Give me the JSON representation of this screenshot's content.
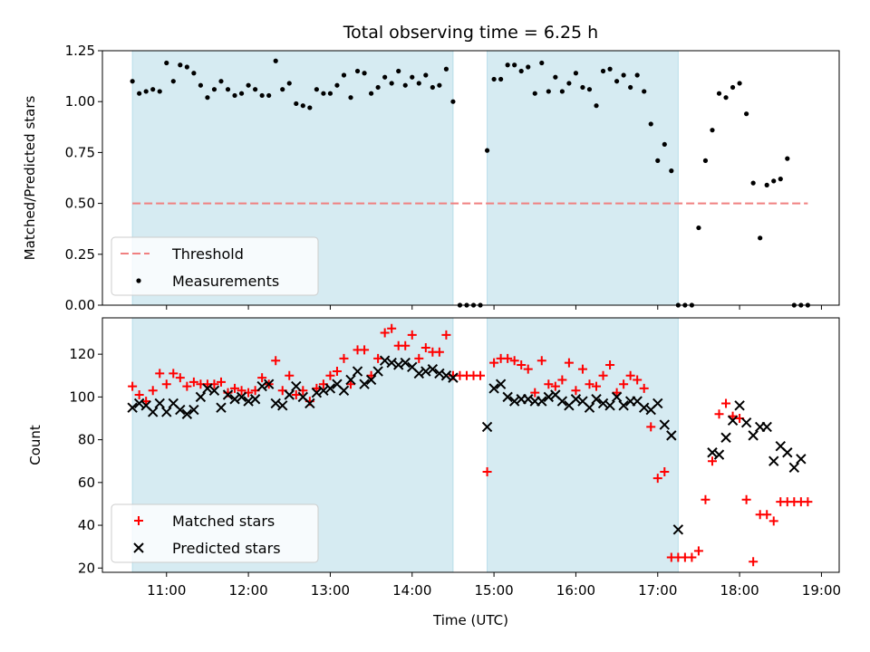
{
  "chart_data": [
    {
      "type": "scatter",
      "title": "Total observing time = 6.25 h",
      "xlabel": "",
      "ylabel": "Matched/Predicted stars",
      "xlim": [
        "10:13",
        "19:13"
      ],
      "ylim": [
        0,
        1.25
      ],
      "y_ticks": [
        "0.00",
        "0.25",
        "0.50",
        "0.75",
        "1.00",
        "1.25"
      ],
      "shaded_spans": [
        [
          "10:35",
          "14:30"
        ],
        [
          "14:55",
          "17:15"
        ]
      ],
      "threshold": {
        "name": "Threshold",
        "value": 0.5,
        "x_range": [
          "10:35",
          "18:50"
        ],
        "color": "#f08080"
      },
      "legend": [
        "Threshold",
        "Measurements"
      ],
      "legend_position": "lower-left",
      "series": [
        {
          "name": "Measurements",
          "color": "#000000",
          "x": [
            "10:35",
            "10:40",
            "10:45",
            "10:50",
            "10:55",
            "11:00",
            "11:05",
            "11:10",
            "11:15",
            "11:20",
            "11:25",
            "11:30",
            "11:35",
            "11:40",
            "11:45",
            "11:50",
            "11:55",
            "12:00",
            "12:05",
            "12:10",
            "12:15",
            "12:20",
            "12:25",
            "12:30",
            "12:35",
            "12:40",
            "12:45",
            "12:50",
            "12:55",
            "13:00",
            "13:05",
            "13:10",
            "13:15",
            "13:20",
            "13:25",
            "13:30",
            "13:35",
            "13:40",
            "13:45",
            "13:50",
            "13:55",
            "14:00",
            "14:05",
            "14:10",
            "14:15",
            "14:20",
            "14:25",
            "14:30",
            "14:35",
            "14:40",
            "14:45",
            "14:50",
            "14:55",
            "15:00",
            "15:05",
            "15:10",
            "15:15",
            "15:20",
            "15:25",
            "15:30",
            "15:35",
            "15:40",
            "15:45",
            "15:50",
            "15:55",
            "16:00",
            "16:05",
            "16:10",
            "16:15",
            "16:20",
            "16:25",
            "16:30",
            "16:35",
            "16:40",
            "16:45",
            "16:50",
            "16:55",
            "17:00",
            "17:05",
            "17:10",
            "17:15",
            "17:20",
            "17:25",
            "17:30",
            "17:35",
            "17:40",
            "17:45",
            "17:50",
            "17:55",
            "18:00",
            "18:05",
            "18:10",
            "18:15",
            "18:20",
            "18:25",
            "18:30",
            "18:35",
            "18:40",
            "18:45",
            "18:50"
          ],
          "y": [
            1.1,
            1.04,
            1.05,
            1.06,
            1.05,
            1.19,
            1.1,
            1.18,
            1.17,
            1.14,
            1.08,
            1.02,
            1.06,
            1.1,
            1.06,
            1.03,
            1.04,
            1.08,
            1.06,
            1.03,
            1.03,
            1.2,
            1.06,
            1.09,
            0.99,
            0.98,
            0.97,
            1.06,
            1.04,
            1.04,
            1.08,
            1.13,
            1.02,
            1.15,
            1.14,
            1.04,
            1.07,
            1.12,
            1.09,
            1.15,
            1.08,
            1.12,
            1.09,
            1.13,
            1.07,
            1.08,
            1.16,
            1.0,
            0.0,
            0.0,
            0.0,
            0.0,
            0.76,
            1.11,
            1.11,
            1.18,
            1.18,
            1.15,
            1.17,
            1.04,
            1.19,
            1.05,
            1.12,
            1.05,
            1.09,
            1.14,
            1.07,
            1.06,
            0.98,
            1.15,
            1.16,
            1.1,
            1.13,
            1.07,
            1.13,
            1.05,
            0.89,
            0.71,
            0.79,
            0.66,
            0.0,
            0.0,
            0.0,
            0.38,
            0.71,
            0.86,
            1.04,
            1.02,
            1.07,
            1.09,
            0.94,
            0.6,
            0.33,
            0.59,
            0.61,
            0.62,
            0.72,
            0.0,
            0.0,
            0.0
          ]
        }
      ]
    },
    {
      "type": "scatter",
      "title": "",
      "xlabel": "Time (UTC)",
      "ylabel": "Count",
      "xlim": [
        "10:13",
        "19:13"
      ],
      "ylim": [
        18,
        137
      ],
      "x_ticks": [
        "11:00",
        "12:00",
        "13:00",
        "14:00",
        "15:00",
        "16:00",
        "17:00",
        "18:00",
        "19:00"
      ],
      "y_ticks": [
        "20",
        "40",
        "60",
        "80",
        "100",
        "120"
      ],
      "shaded_spans": [
        [
          "10:35",
          "14:30"
        ],
        [
          "14:55",
          "17:15"
        ]
      ],
      "legend": [
        "Matched stars",
        "Predicted stars"
      ],
      "legend_position": "lower-left",
      "series": [
        {
          "name": "Matched stars",
          "marker": "plus",
          "color": "#ff0000",
          "x": [
            "10:35",
            "10:40",
            "10:45",
            "10:50",
            "10:55",
            "11:00",
            "11:05",
            "11:10",
            "11:15",
            "11:20",
            "11:25",
            "11:30",
            "11:35",
            "11:40",
            "11:45",
            "11:50",
            "11:55",
            "12:00",
            "12:05",
            "12:10",
            "12:15",
            "12:20",
            "12:25",
            "12:30",
            "12:35",
            "12:40",
            "12:45",
            "12:50",
            "12:55",
            "13:00",
            "13:05",
            "13:10",
            "13:15",
            "13:20",
            "13:25",
            "13:30",
            "13:35",
            "13:40",
            "13:45",
            "13:50",
            "13:55",
            "14:00",
            "14:05",
            "14:10",
            "14:15",
            "14:20",
            "14:25",
            "14:30",
            "14:35",
            "14:40",
            "14:45",
            "14:50",
            "14:55",
            "15:00",
            "15:05",
            "15:10",
            "15:15",
            "15:20",
            "15:25",
            "15:30",
            "15:35",
            "15:40",
            "15:45",
            "15:50",
            "15:55",
            "16:00",
            "16:05",
            "16:10",
            "16:15",
            "16:20",
            "16:25",
            "16:30",
            "16:35",
            "16:40",
            "16:45",
            "16:50",
            "16:55",
            "17:00",
            "17:05",
            "17:10",
            "17:15",
            "17:20",
            "17:25",
            "17:30",
            "17:35",
            "17:40",
            "17:45",
            "17:50",
            "17:55",
            "18:00",
            "18:05",
            "18:10",
            "18:15",
            "18:20",
            "18:25",
            "18:30",
            "18:35",
            "18:40",
            "18:45",
            "18:50"
          ],
          "y": [
            105,
            101,
            98,
            103,
            111,
            106,
            111,
            109,
            105,
            107,
            106,
            106,
            106,
            107,
            102,
            104,
            103,
            102,
            103,
            109,
            106,
            117,
            103,
            110,
            101,
            103,
            98,
            104,
            106,
            110,
            112,
            118,
            106,
            122,
            122,
            110,
            118,
            130,
            132,
            124,
            124,
            129,
            118,
            123,
            121,
            121,
            129,
            110,
            110,
            110,
            110,
            110,
            65,
            116,
            118,
            118,
            117,
            115,
            113,
            102,
            117,
            106,
            105,
            108,
            116,
            103,
            113,
            106,
            105,
            110,
            115,
            102,
            106,
            110,
            108,
            104,
            86,
            62,
            65,
            25,
            25,
            25,
            25,
            28,
            52,
            70,
            92,
            97,
            91,
            90,
            52,
            23,
            45,
            45,
            42,
            51,
            51,
            51,
            51,
            51
          ]
        },
        {
          "name": "Predicted stars",
          "marker": "x",
          "color": "#000000",
          "x": [
            "10:35",
            "10:40",
            "10:45",
            "10:50",
            "10:55",
            "11:00",
            "11:05",
            "11:10",
            "11:15",
            "11:20",
            "11:25",
            "11:30",
            "11:35",
            "11:40",
            "11:45",
            "11:50",
            "11:55",
            "12:00",
            "12:05",
            "12:10",
            "12:15",
            "12:20",
            "12:25",
            "12:30",
            "12:35",
            "12:40",
            "12:45",
            "12:50",
            "12:55",
            "13:00",
            "13:05",
            "13:10",
            "13:15",
            "13:20",
            "13:25",
            "13:30",
            "13:35",
            "13:40",
            "13:45",
            "13:50",
            "13:55",
            "14:00",
            "14:05",
            "14:10",
            "14:15",
            "14:20",
            "14:25",
            "14:30",
            "14:55",
            "15:00",
            "15:05",
            "15:10",
            "15:15",
            "15:20",
            "15:25",
            "15:30",
            "15:35",
            "15:40",
            "15:45",
            "15:50",
            "15:55",
            "16:00",
            "16:05",
            "16:10",
            "16:15",
            "16:20",
            "16:25",
            "16:30",
            "16:35",
            "16:40",
            "16:45",
            "16:50",
            "16:55",
            "17:00",
            "17:05",
            "17:10",
            "17:15",
            "17:40",
            "17:45",
            "17:50",
            "17:55",
            "18:00",
            "18:05",
            "18:10",
            "18:15",
            "18:20",
            "18:25",
            "18:30",
            "18:35",
            "18:40",
            "18:45"
          ],
          "y": [
            95,
            97,
            96,
            93,
            97,
            93,
            97,
            94,
            92,
            94,
            100,
            104,
            103,
            95,
            101,
            99,
            100,
            98,
            99,
            105,
            106,
            97,
            96,
            101,
            105,
            100,
            97,
            102,
            103,
            104,
            106,
            103,
            108,
            112,
            106,
            108,
            112,
            117,
            116,
            115,
            116,
            114,
            111,
            112,
            113,
            111,
            110,
            109,
            86,
            104,
            106,
            100,
            98,
            99,
            99,
            98,
            98,
            100,
            101,
            98,
            96,
            99,
            98,
            95,
            99,
            97,
            96,
            100,
            96,
            98,
            98,
            95,
            94,
            97,
            87,
            82,
            38,
            74,
            73,
            81,
            89,
            96,
            88,
            82,
            86,
            86,
            70,
            77,
            74,
            67,
            71
          ]
        }
      ]
    }
  ]
}
